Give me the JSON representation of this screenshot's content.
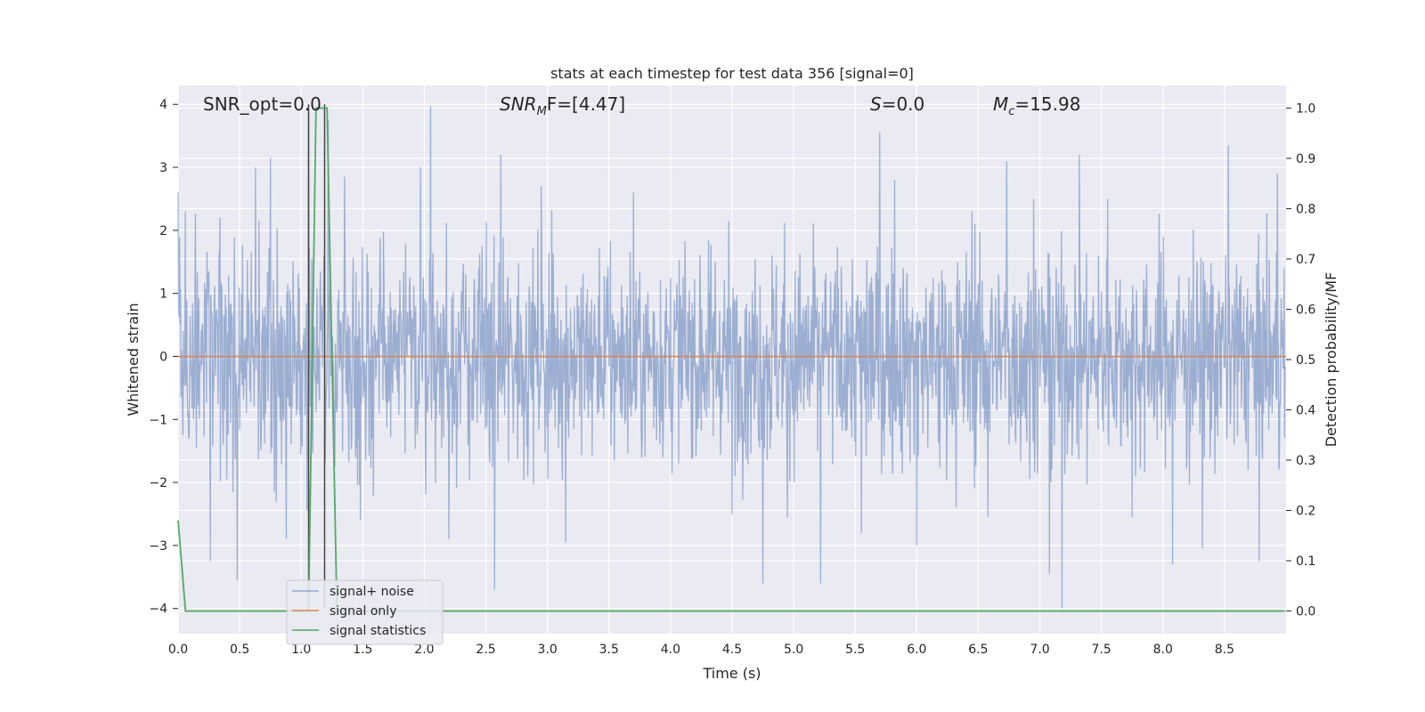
{
  "chart_data": {
    "type": "line",
    "title": "stats at each timestep for test data 356 [signal=0]",
    "xlabel": "Time (s)",
    "ylabel": "Whitened strain",
    "ylabel_right": "Detection probability/MF",
    "xlim": [
      0.0,
      9.0
    ],
    "ylim": [
      -4.4,
      4.3
    ],
    "ylim_right": [
      -0.045,
      1.045
    ],
    "x_ticks": [
      "0.0",
      "0.5",
      "1.0",
      "1.5",
      "2.0",
      "2.5",
      "3.0",
      "3.5",
      "4.0",
      "4.5",
      "5.0",
      "5.5",
      "6.0",
      "6.5",
      "7.0",
      "7.5",
      "8.0",
      "8.5"
    ],
    "y_ticks": [
      "−4",
      "−3",
      "−2",
      "−1",
      "0",
      "1",
      "2",
      "3",
      "4"
    ],
    "y_ticks_right": [
      "0.0",
      "0.1",
      "0.2",
      "0.3",
      "0.4",
      "0.5",
      "0.6",
      "0.7",
      "0.8",
      "0.9",
      "1.0"
    ],
    "grid": true,
    "legend_position": "lower-left",
    "annotations": [
      {
        "text": "SNR_opt=0.0"
      },
      {
        "text": "SNR_MF=[4.47]",
        "base": "SNR",
        "sub": "M",
        "rest": "F=[4.47]"
      },
      {
        "text": "S=0.0",
        "base": "S",
        "rest": "=0.0"
      },
      {
        "text": "M_c=15.98",
        "base": "M",
        "sub": "c",
        "rest": "=15.98"
      }
    ],
    "vlines": [
      {
        "x": 1.06,
        "color": "#444444"
      },
      {
        "x": 1.19,
        "color": "#444444"
      }
    ],
    "series": [
      {
        "name": "signal+ noise",
        "color": "#4c72b0",
        "description_stats": {
          "n": 2304,
          "approx_std": 1.0,
          "max": 3.97,
          "min": -4.0
        },
        "peaks": [
          [
            0.06,
            2.3
          ],
          [
            0.26,
            -3.25
          ],
          [
            0.48,
            -3.55
          ],
          [
            0.63,
            3.0
          ],
          [
            0.75,
            3.15
          ],
          [
            0.88,
            -2.9
          ],
          [
            1.06,
            4.0
          ],
          [
            1.22,
            3.75
          ],
          [
            1.35,
            2.85
          ],
          [
            1.48,
            -2.6
          ],
          [
            1.97,
            3.0
          ],
          [
            2.05,
            3.97
          ],
          [
            2.2,
            -2.9
          ],
          [
            2.57,
            -3.7
          ],
          [
            2.62,
            3.2
          ],
          [
            2.95,
            2.7
          ],
          [
            3.15,
            -2.95
          ],
          [
            3.7,
            2.6
          ],
          [
            4.5,
            -2.5
          ],
          [
            4.75,
            -3.6
          ],
          [
            4.95,
            -2.55
          ],
          [
            5.22,
            -3.6
          ],
          [
            5.55,
            -2.8
          ],
          [
            5.7,
            3.55
          ],
          [
            5.82,
            2.8
          ],
          [
            6.0,
            -3.0
          ],
          [
            6.32,
            -2.4
          ],
          [
            6.45,
            2.3
          ],
          [
            6.58,
            -2.55
          ],
          [
            6.73,
            3.1
          ],
          [
            6.95,
            2.5
          ],
          [
            7.08,
            -3.45
          ],
          [
            7.18,
            -4.0
          ],
          [
            7.32,
            3.2
          ],
          [
            7.55,
            2.5
          ],
          [
            7.75,
            -2.55
          ],
          [
            8.08,
            -3.3
          ],
          [
            8.32,
            -3.05
          ],
          [
            8.53,
            3.35
          ],
          [
            8.78,
            -3.25
          ],
          [
            8.93,
            2.9
          ]
        ]
      },
      {
        "name": "signal only",
        "color": "#dd8452",
        "x": [
          0.0,
          9.0
        ],
        "y": [
          0.0,
          0.0
        ]
      },
      {
        "name": "signal statistics",
        "color": "#55a868",
        "axis": "right",
        "x": [
          0.0,
          0.06,
          0.12,
          1.06,
          1.12,
          1.16,
          1.21,
          1.29,
          8.99
        ],
        "y": [
          0.18,
          0.0,
          0.0,
          0.0,
          1.0,
          1.0,
          1.0,
          0.0,
          0.0
        ]
      }
    ]
  }
}
